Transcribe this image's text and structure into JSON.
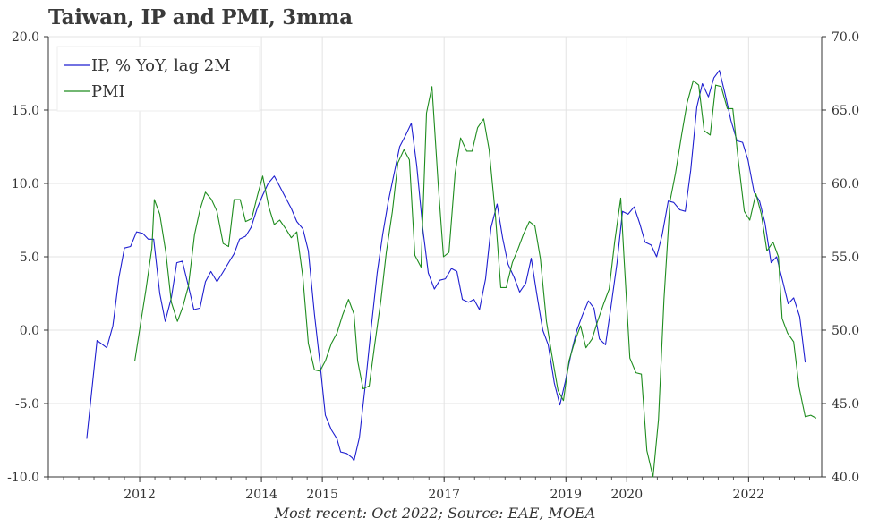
{
  "title": "Taiwan, IP and PMI, 3mma",
  "footer": "Most recent: Oct 2022; Source: EAE, MOEA",
  "chart_data": {
    "type": "line",
    "x_ticks": [
      "2012",
      "2014",
      "2015",
      "2017",
      "2019",
      "2020",
      "2022"
    ],
    "x_tick_years": [
      2012,
      2014,
      2015,
      2017,
      2019,
      2020,
      2022
    ],
    "xlim": [
      2010.5,
      2023.2
    ],
    "y_left": {
      "lim": [
        -10,
        20
      ],
      "ticks": [
        "-10.0",
        "-5.0",
        "0.0",
        "5.0",
        "10.0",
        "15.0",
        "20.0"
      ],
      "tick_values": [
        -10,
        -5,
        0,
        5,
        10,
        15,
        20
      ]
    },
    "y_right": {
      "lim": [
        40,
        70
      ],
      "ticks": [
        "40.0",
        "45.0",
        "50.0",
        "55.0",
        "60.0",
        "65.0",
        "70.0"
      ],
      "tick_values": [
        40,
        45,
        50,
        55,
        60,
        65,
        70
      ]
    },
    "grid": true,
    "legend_position": "top-left",
    "series": [
      {
        "name": "IP, % YoY, lag 2M",
        "axis": "left",
        "color": "#1f1fd0",
        "points": [
          [
            2011.13,
            -7.4
          ],
          [
            2011.3,
            -0.7
          ],
          [
            2011.46,
            -1.2
          ],
          [
            2011.56,
            0.3
          ],
          [
            2011.66,
            3.6
          ],
          [
            2011.75,
            5.6
          ],
          [
            2011.85,
            5.7
          ],
          [
            2011.95,
            6.7
          ],
          [
            2012.05,
            6.6
          ],
          [
            2012.14,
            6.2
          ],
          [
            2012.23,
            6.2
          ],
          [
            2012.33,
            2.5
          ],
          [
            2012.42,
            0.6
          ],
          [
            2012.52,
            2.2
          ],
          [
            2012.61,
            4.6
          ],
          [
            2012.7,
            4.7
          ],
          [
            2012.8,
            3.0
          ],
          [
            2012.89,
            1.4
          ],
          [
            2012.99,
            1.5
          ],
          [
            2013.08,
            3.3
          ],
          [
            2013.17,
            4.0
          ],
          [
            2013.27,
            3.3
          ],
          [
            2013.36,
            3.9
          ],
          [
            2013.46,
            4.6
          ],
          [
            2013.55,
            5.2
          ],
          [
            2013.64,
            6.2
          ],
          [
            2013.74,
            6.4
          ],
          [
            2013.83,
            7.0
          ],
          [
            2013.93,
            8.3
          ],
          [
            2014.02,
            9.2
          ],
          [
            2014.11,
            10.0
          ],
          [
            2014.21,
            10.5
          ],
          [
            2014.3,
            9.8
          ],
          [
            2014.4,
            9.0
          ],
          [
            2014.49,
            8.3
          ],
          [
            2014.58,
            7.4
          ],
          [
            2014.68,
            6.9
          ],
          [
            2014.77,
            5.4
          ],
          [
            2014.87,
            1.1
          ],
          [
            2014.96,
            -2.2
          ],
          [
            2015.05,
            -5.8
          ],
          [
            2015.15,
            -6.8
          ],
          [
            2015.24,
            -7.4
          ],
          [
            2015.3,
            -8.3
          ],
          [
            2015.4,
            -8.4
          ],
          [
            2015.49,
            -8.7
          ],
          [
            2015.52,
            -8.9
          ],
          [
            2015.61,
            -7.3
          ],
          [
            2015.71,
            -3.6
          ],
          [
            2015.8,
            0.1
          ],
          [
            2015.9,
            3.9
          ],
          [
            2015.99,
            6.5
          ],
          [
            2016.08,
            8.7
          ],
          [
            2016.18,
            10.7
          ],
          [
            2016.27,
            12.5
          ],
          [
            2016.37,
            13.3
          ],
          [
            2016.46,
            14.1
          ],
          [
            2016.55,
            11.2
          ],
          [
            2016.65,
            6.9
          ],
          [
            2016.74,
            3.9
          ],
          [
            2016.84,
            2.8
          ],
          [
            2016.93,
            3.4
          ],
          [
            2017.02,
            3.5
          ],
          [
            2017.12,
            4.2
          ],
          [
            2017.21,
            4.0
          ],
          [
            2017.3,
            2.1
          ],
          [
            2017.4,
            1.9
          ],
          [
            2017.49,
            2.1
          ],
          [
            2017.58,
            1.4
          ],
          [
            2017.68,
            3.5
          ],
          [
            2017.77,
            7.0
          ],
          [
            2017.87,
            8.6
          ],
          [
            2017.96,
            6.3
          ],
          [
            2018.05,
            4.5
          ],
          [
            2018.15,
            3.6
          ],
          [
            2018.24,
            2.6
          ],
          [
            2018.34,
            3.2
          ],
          [
            2018.43,
            4.9
          ],
          [
            2018.52,
            2.5
          ],
          [
            2018.62,
            0.0
          ],
          [
            2018.71,
            -1.0
          ],
          [
            2018.81,
            -3.6
          ],
          [
            2018.9,
            -5.1
          ],
          [
            2018.99,
            -3.5
          ],
          [
            2019.09,
            -1.5
          ],
          [
            2019.18,
            0.0
          ],
          [
            2019.27,
            1.0
          ],
          [
            2019.37,
            2.0
          ],
          [
            2019.46,
            1.5
          ],
          [
            2019.55,
            -0.6
          ],
          [
            2019.65,
            -1.0
          ],
          [
            2019.74,
            1.6
          ],
          [
            2019.84,
            4.6
          ],
          [
            2019.93,
            8.1
          ],
          [
            2020.02,
            7.9
          ],
          [
            2020.12,
            8.4
          ],
          [
            2020.21,
            7.3
          ],
          [
            2020.3,
            6.0
          ],
          [
            2020.4,
            5.8
          ],
          [
            2020.49,
            5.0
          ],
          [
            2020.58,
            6.5
          ],
          [
            2020.68,
            8.8
          ],
          [
            2020.77,
            8.7
          ],
          [
            2020.87,
            8.2
          ],
          [
            2020.96,
            8.1
          ],
          [
            2021.05,
            10.9
          ],
          [
            2021.15,
            15.2
          ],
          [
            2021.24,
            16.8
          ],
          [
            2021.34,
            15.9
          ],
          [
            2021.43,
            17.2
          ],
          [
            2021.52,
            17.7
          ],
          [
            2021.62,
            16.0
          ],
          [
            2021.71,
            14.3
          ],
          [
            2021.81,
            12.9
          ],
          [
            2021.9,
            12.8
          ],
          [
            2021.99,
            11.6
          ],
          [
            2022.09,
            9.4
          ],
          [
            2022.18,
            8.8
          ],
          [
            2022.27,
            7.3
          ],
          [
            2022.37,
            4.6
          ],
          [
            2022.46,
            5.0
          ],
          [
            2022.55,
            3.5
          ],
          [
            2022.65,
            1.8
          ],
          [
            2022.74,
            2.2
          ],
          [
            2022.84,
            0.9
          ],
          [
            2022.93,
            -2.2
          ]
        ]
      },
      {
        "name": "PMI",
        "axis": "right",
        "color": "#1e8c1e",
        "points": [
          [
            2011.92,
            47.9
          ],
          [
            2012.01,
            50.3
          ],
          [
            2012.1,
            52.7
          ],
          [
            2012.2,
            55.6
          ],
          [
            2012.24,
            58.9
          ],
          [
            2012.33,
            57.9
          ],
          [
            2012.43,
            55.3
          ],
          [
            2012.52,
            51.9
          ],
          [
            2012.62,
            50.6
          ],
          [
            2012.71,
            51.6
          ],
          [
            2012.8,
            53.0
          ],
          [
            2012.9,
            56.5
          ],
          [
            2012.99,
            58.2
          ],
          [
            2013.08,
            59.4
          ],
          [
            2013.18,
            58.9
          ],
          [
            2013.27,
            58.1
          ],
          [
            2013.37,
            55.9
          ],
          [
            2013.46,
            55.7
          ],
          [
            2013.55,
            58.9
          ],
          [
            2013.65,
            58.9
          ],
          [
            2013.74,
            57.4
          ],
          [
            2013.84,
            57.6
          ],
          [
            2013.93,
            59.1
          ],
          [
            2014.02,
            60.5
          ],
          [
            2014.12,
            58.4
          ],
          [
            2014.21,
            57.2
          ],
          [
            2014.3,
            57.5
          ],
          [
            2014.4,
            56.9
          ],
          [
            2014.49,
            56.3
          ],
          [
            2014.58,
            56.7
          ],
          [
            2014.68,
            53.6
          ],
          [
            2014.77,
            49.1
          ],
          [
            2014.87,
            47.3
          ],
          [
            2014.96,
            47.2
          ],
          [
            2015.05,
            47.9
          ],
          [
            2015.15,
            49.1
          ],
          [
            2015.24,
            49.8
          ],
          [
            2015.33,
            51.0
          ],
          [
            2015.43,
            52.1
          ],
          [
            2015.52,
            51.1
          ],
          [
            2015.58,
            47.9
          ],
          [
            2015.67,
            46.0
          ],
          [
            2015.77,
            46.2
          ],
          [
            2015.86,
            49.0
          ],
          [
            2015.96,
            52.0
          ],
          [
            2016.05,
            55.3
          ],
          [
            2016.15,
            58.1
          ],
          [
            2016.24,
            61.4
          ],
          [
            2016.34,
            62.3
          ],
          [
            2016.43,
            61.6
          ],
          [
            2016.52,
            55.1
          ],
          [
            2016.62,
            54.3
          ],
          [
            2016.71,
            64.8
          ],
          [
            2016.8,
            66.6
          ],
          [
            2016.9,
            60.1
          ],
          [
            2016.99,
            55.0
          ],
          [
            2017.08,
            55.3
          ],
          [
            2017.18,
            60.7
          ],
          [
            2017.27,
            63.1
          ],
          [
            2017.37,
            62.2
          ],
          [
            2017.46,
            62.2
          ],
          [
            2017.55,
            63.8
          ],
          [
            2017.65,
            64.4
          ],
          [
            2017.74,
            62.3
          ],
          [
            2017.84,
            57.9
          ],
          [
            2017.93,
            52.9
          ],
          [
            2018.02,
            52.9
          ],
          [
            2018.12,
            54.6
          ],
          [
            2018.21,
            55.5
          ],
          [
            2018.3,
            56.5
          ],
          [
            2018.4,
            57.4
          ],
          [
            2018.49,
            57.1
          ],
          [
            2018.58,
            54.9
          ],
          [
            2018.68,
            50.6
          ],
          [
            2018.77,
            48.3
          ],
          [
            2018.87,
            45.9
          ],
          [
            2018.96,
            45.2
          ],
          [
            2019.05,
            47.9
          ],
          [
            2019.15,
            49.3
          ],
          [
            2019.24,
            50.3
          ],
          [
            2019.33,
            48.8
          ],
          [
            2019.43,
            49.4
          ],
          [
            2019.52,
            50.6
          ],
          [
            2019.62,
            51.8
          ],
          [
            2019.71,
            52.8
          ],
          [
            2019.8,
            56.0
          ],
          [
            2019.9,
            59.0
          ],
          [
            2019.96,
            54.5
          ],
          [
            2020.05,
            48.1
          ],
          [
            2020.15,
            47.1
          ],
          [
            2020.24,
            47.0
          ],
          [
            2020.33,
            41.8
          ],
          [
            2020.43,
            40.0
          ],
          [
            2020.52,
            43.9
          ],
          [
            2020.61,
            52.1
          ],
          [
            2020.71,
            58.8
          ],
          [
            2020.8,
            60.7
          ],
          [
            2020.9,
            63.3
          ],
          [
            2020.99,
            65.5
          ],
          [
            2021.09,
            67.0
          ],
          [
            2021.18,
            66.7
          ],
          [
            2021.27,
            63.6
          ],
          [
            2021.37,
            63.3
          ],
          [
            2021.46,
            66.7
          ],
          [
            2021.55,
            66.6
          ],
          [
            2021.65,
            65.1
          ],
          [
            2021.74,
            65.1
          ],
          [
            2021.83,
            61.6
          ],
          [
            2021.93,
            58.1
          ],
          [
            2022.02,
            57.5
          ],
          [
            2022.12,
            59.3
          ],
          [
            2022.21,
            57.9
          ],
          [
            2022.3,
            55.4
          ],
          [
            2022.4,
            56.0
          ],
          [
            2022.49,
            55.0
          ],
          [
            2022.55,
            50.8
          ],
          [
            2022.64,
            49.8
          ],
          [
            2022.74,
            49.2
          ],
          [
            2022.83,
            46.1
          ],
          [
            2022.93,
            44.1
          ],
          [
            2023.02,
            44.2
          ],
          [
            2023.11,
            44.0
          ]
        ]
      }
    ]
  }
}
